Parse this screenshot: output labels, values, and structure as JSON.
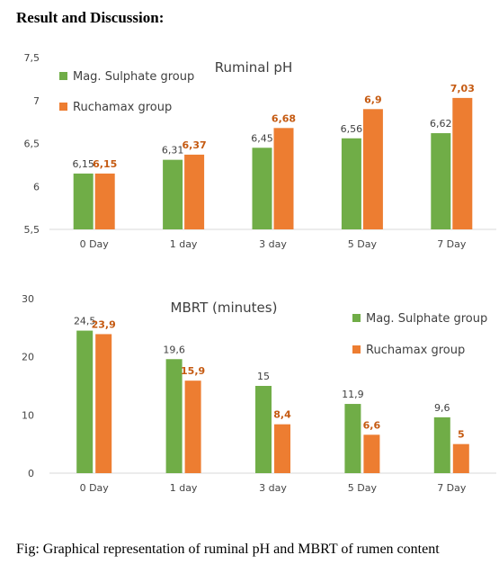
{
  "heading": "Result and Discussion:",
  "caption": "Fig: Graphical representation of ruminal pH and MBRT of rumen content",
  "colors": {
    "series_a": "#70ad47",
    "series_b": "#ed7d31",
    "label_b": "#c55a11",
    "axis": "#d9d9d9"
  },
  "chart_data": [
    {
      "type": "bar",
      "title": "Ruminal pH",
      "categories": [
        "0 Day",
        "1 day",
        "3 day",
        "5 Day",
        "7 Day"
      ],
      "ylim": [
        5.5,
        7.5
      ],
      "yticks": [
        "5,5",
        "6",
        "6,5",
        "7",
        "7,5"
      ],
      "ytick_values": [
        5.5,
        6,
        6.5,
        7,
        7.5
      ],
      "legend_position": "top-left",
      "series": [
        {
          "name": "Mag. Sulphate  group",
          "values": [
            6.15,
            6.31,
            6.45,
            6.56,
            6.62
          ],
          "labels": [
            "6,15",
            "6,31",
            "6,45",
            "6,56",
            "6,62"
          ]
        },
        {
          "name": "Ruchamax group",
          "values": [
            6.15,
            6.37,
            6.68,
            6.9,
            7.03
          ],
          "labels": [
            "6,15",
            "6,37",
            "6,68",
            "6,9",
            "7,03"
          ]
        }
      ]
    },
    {
      "type": "bar",
      "title": "MBRT (minutes)",
      "categories": [
        "0 Day",
        "1 day",
        "3 day",
        "5 Day",
        "7 Day"
      ],
      "ylim": [
        0,
        30
      ],
      "yticks": [
        "0",
        "10",
        "20",
        "30"
      ],
      "ytick_values": [
        0,
        10,
        20,
        30
      ],
      "legend_position": "top-right",
      "series": [
        {
          "name": "Mag. Sulphate  group",
          "values": [
            24.5,
            19.6,
            15,
            11.9,
            9.6
          ],
          "labels": [
            "24,5",
            "19,6",
            "15",
            "11,9",
            "9,6"
          ]
        },
        {
          "name": "Ruchamax group",
          "values": [
            23.9,
            15.9,
            8.4,
            6.6,
            5
          ],
          "labels": [
            "23,9",
            "15,9",
            "8,4",
            "6,6",
            "5"
          ]
        }
      ]
    }
  ]
}
